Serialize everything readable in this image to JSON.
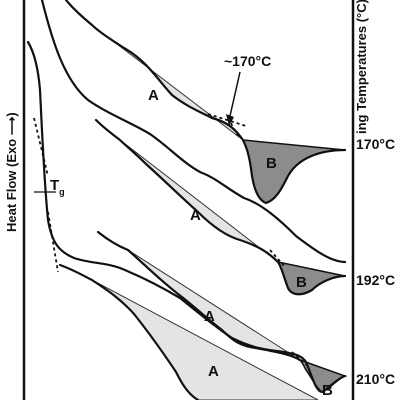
{
  "chart_data": {
    "type": "line",
    "title": "",
    "ylabel": "Heat Flow  (Exo ⟶)",
    "right_axis_label": "ing Temperatures (°C)",
    "grid": false,
    "legend": "none",
    "series": [
      {
        "name": "170°C",
        "annotation": "~170°C",
        "region_labels": [
          "A",
          "B"
        ]
      },
      {
        "name": "192°C",
        "region_labels": [
          "A",
          "B"
        ]
      },
      {
        "name": "210°C",
        "region_labels": [
          "A",
          "B"
        ]
      },
      {
        "region_labels": [
          "A"
        ]
      }
    ],
    "tg_label": "T",
    "tg_subscript": "g"
  },
  "colors": {
    "region_A": "#e4e4e4",
    "region_B": "#8c8c8c",
    "line": "#111111"
  }
}
